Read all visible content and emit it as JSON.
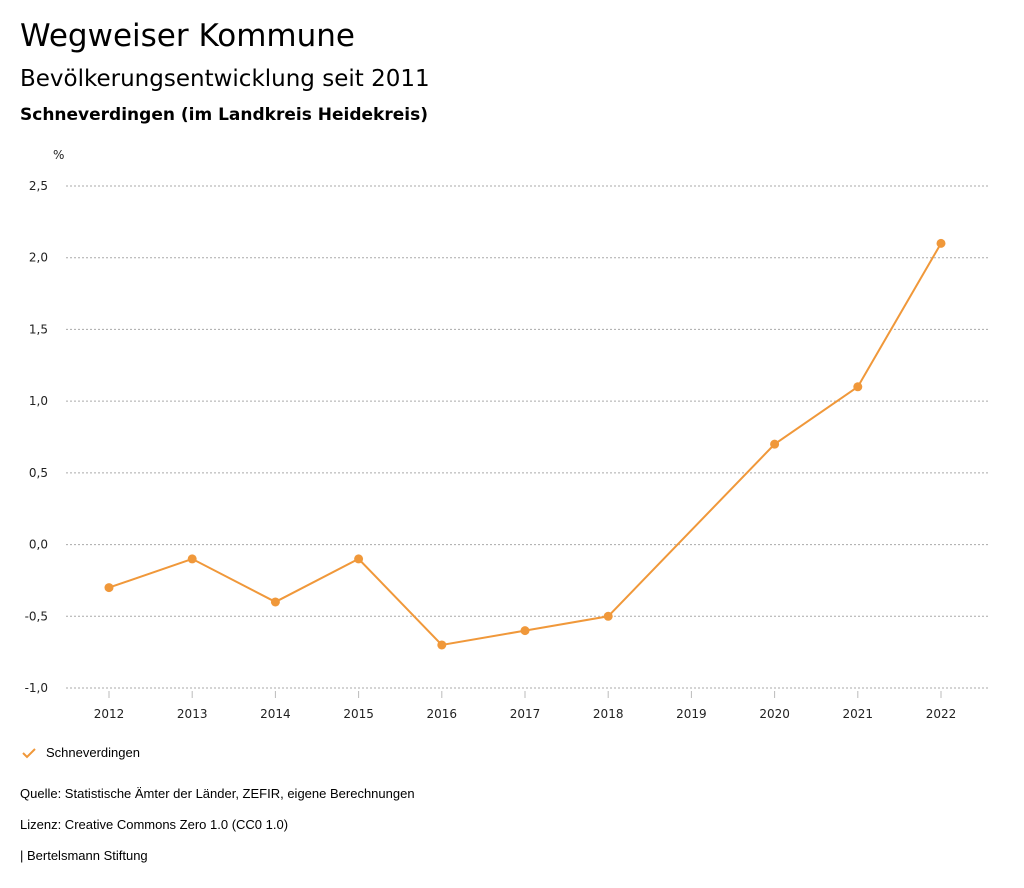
{
  "header": {
    "title": "Wegweiser Kommune",
    "subtitle": "Bevölkerungsentwicklung seit 2011",
    "location": "Schneverdingen (im Landkreis Heidekreis)"
  },
  "chart_data": {
    "type": "line",
    "ylabel": "%",
    "categories": [
      "2012",
      "2013",
      "2014",
      "2015",
      "2016",
      "2017",
      "2018",
      "2019",
      "2020",
      "2021",
      "2022"
    ],
    "series": [
      {
        "name": "Schneverdingen",
        "color": "#f0983a",
        "values": [
          -0.3,
          -0.1,
          -0.4,
          -0.1,
          -0.7,
          -0.6,
          -0.5,
          null,
          0.7,
          1.1,
          2.1
        ]
      }
    ],
    "ylim": [
      -1.0,
      2.5
    ],
    "yticks": [
      2.5,
      2.0,
      1.5,
      1.0,
      0.5,
      0.0,
      -0.5,
      -1.0
    ],
    "ytick_labels": [
      "2,5",
      "2,0",
      "1,5",
      "1,0",
      "0,5",
      "0,0",
      "-0,5",
      "-1,0"
    ],
    "grid": true,
    "legend": "bottom-left"
  },
  "legend": {
    "label": "Schneverdingen",
    "icon": "check-icon"
  },
  "footer": {
    "source": "Quelle: Statistische Ämter der Länder, ZEFIR, eigene Berechnungen",
    "license": "Lizenz: Creative Commons Zero 1.0 (CC0 1.0)",
    "publisher": "| Bertelsmann Stiftung"
  }
}
